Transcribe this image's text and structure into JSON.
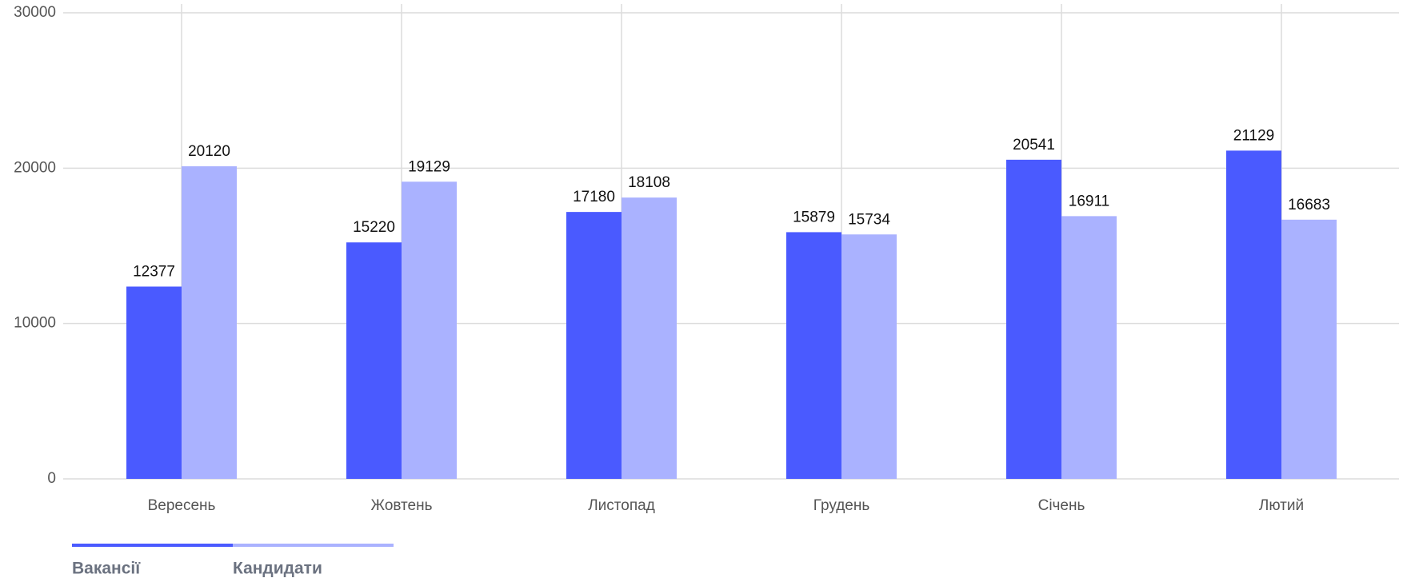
{
  "chart_data": {
    "type": "bar",
    "categories": [
      "Вересень",
      "Жовтень",
      "Листопад",
      "Грудень",
      "Січень",
      "Лютий"
    ],
    "series": [
      {
        "name": "Вакансії",
        "color": "#4a5aff",
        "values": [
          12377,
          15220,
          17180,
          15879,
          20541,
          21129
        ]
      },
      {
        "name": "Кандидати",
        "color": "#aab2ff",
        "values": [
          20120,
          19129,
          18108,
          15734,
          16911,
          16683
        ]
      }
    ],
    "ylim": [
      0,
      30000
    ],
    "yticks": [
      0,
      10000,
      20000,
      30000
    ],
    "grid": true
  }
}
